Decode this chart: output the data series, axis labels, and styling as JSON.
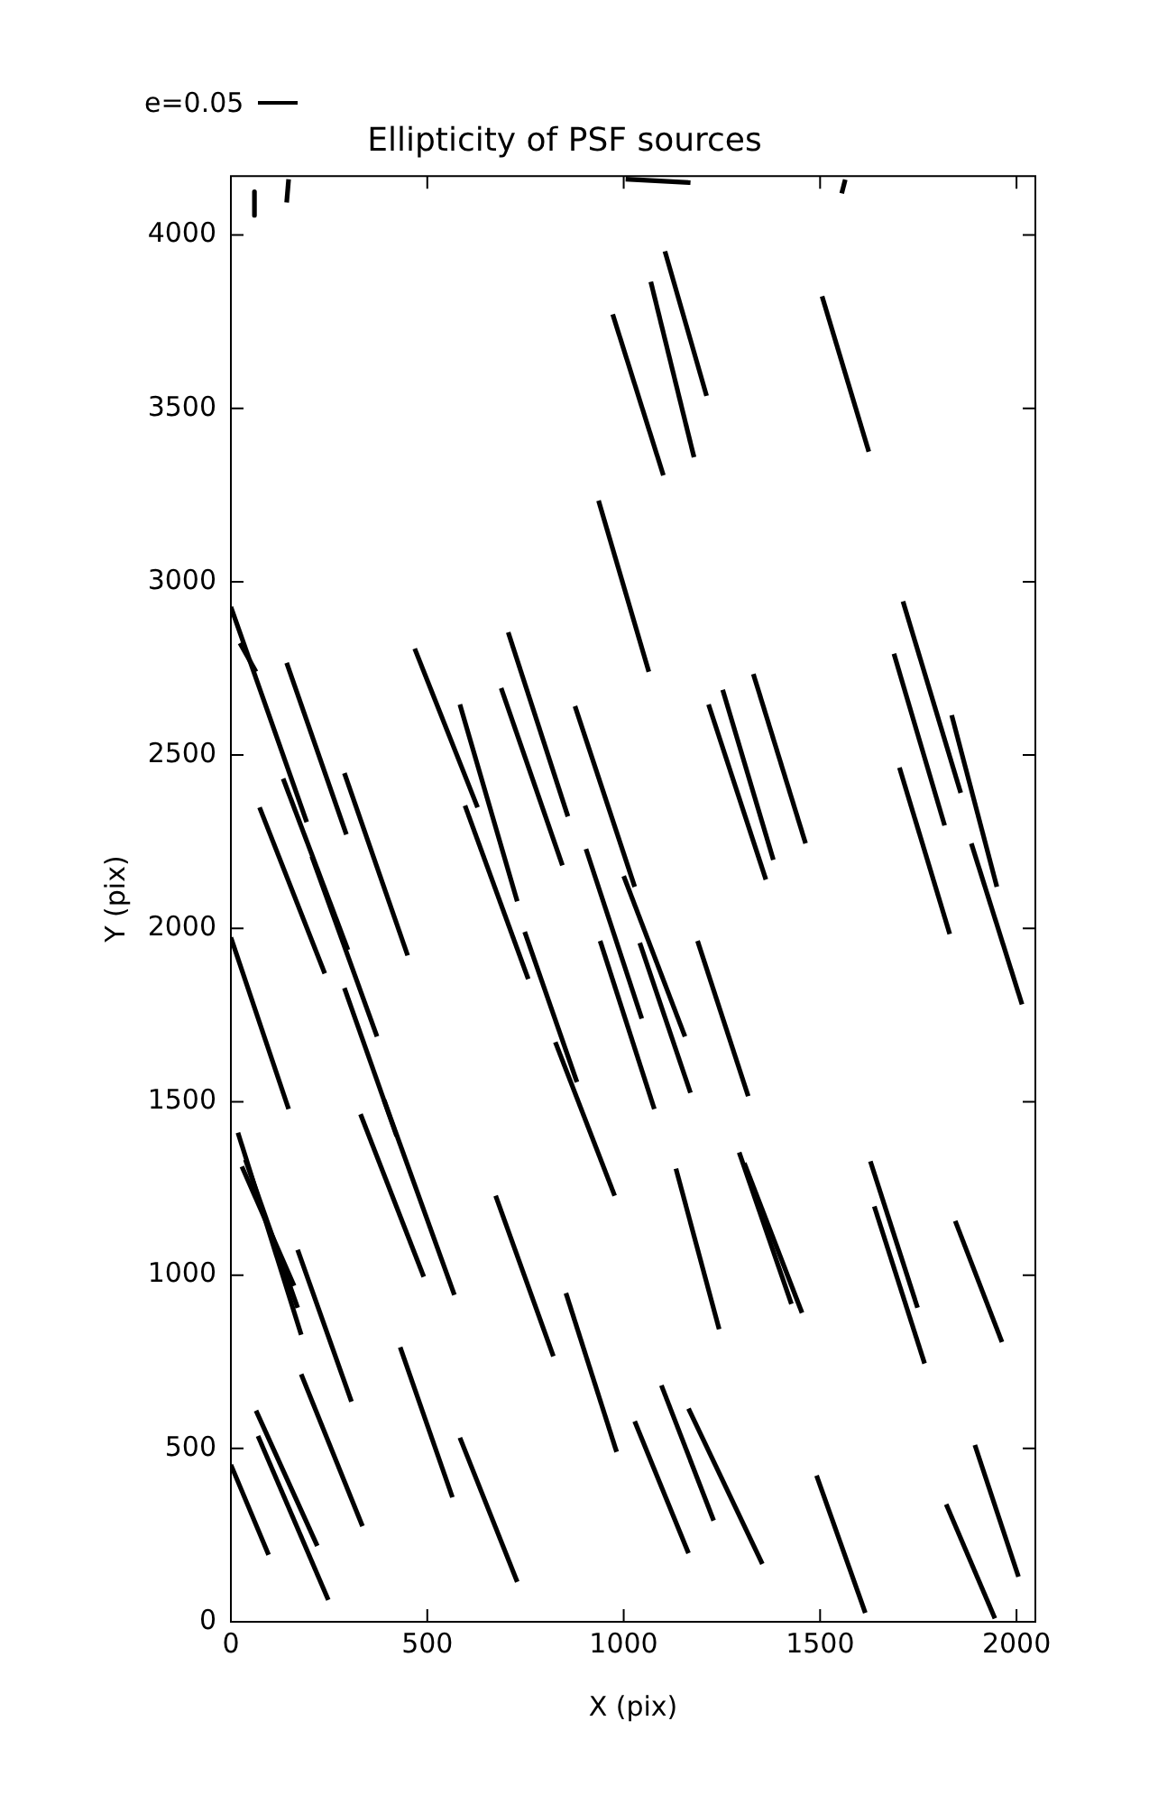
{
  "chart_data": {
    "type": "line",
    "title": "Ellipticity of PSF sources",
    "xlabel": "X (pix)",
    "ylabel": "Y (pix)",
    "xlim": [
      0,
      2048
    ],
    "ylim": [
      0,
      4170
    ],
    "xticks": [
      0,
      500,
      1000,
      1500,
      2000
    ],
    "yticks": [
      0,
      500,
      1000,
      1500,
      2000,
      2500,
      3000,
      3500,
      4000
    ],
    "grid": false,
    "legend": "top left",
    "marker": "none",
    "line_style": "solid",
    "series": [
      {
        "name": "e=0.05",
        "color": "#000000",
        "x": [
          60,
          60
        ],
        "values": [
          4125,
          4057
        ]
      },
      {
        "color": "#000000",
        "x": [
          147,
          142
        ],
        "values": [
          4161,
          4094
        ]
      },
      {
        "color": "#000000",
        "x": [
          1005,
          1170
        ],
        "values": [
          4161,
          4151
        ]
      },
      {
        "color": "#000000",
        "x": [
          1564,
          1555
        ],
        "values": [
          4160,
          4120
        ]
      },
      {
        "color": "#000000",
        "x": [
          972,
          1101
        ],
        "values": [
          3771,
          3307
        ]
      },
      {
        "color": "#000000",
        "x": [
          1069,
          1179
        ],
        "values": [
          3865,
          3359
        ]
      },
      {
        "color": "#000000",
        "x": [
          1105,
          1211
        ],
        "values": [
          3953,
          3536
        ]
      },
      {
        "color": "#000000",
        "x": [
          1505,
          1624
        ],
        "values": [
          3823,
          3375
        ]
      },
      {
        "color": "#000000",
        "x": [
          936,
          1064
        ],
        "values": [
          3234,
          2740
        ]
      },
      {
        "color": "#000000",
        "x": [
          0,
          193
        ],
        "values": [
          2927,
          2307
        ]
      },
      {
        "color": "#000000",
        "x": [
          23,
          64
        ],
        "values": [
          2823,
          2740
        ]
      },
      {
        "color": "#000000",
        "x": [
          142,
          294
        ],
        "values": [
          2766,
          2271
        ]
      },
      {
        "color": "#000000",
        "x": [
          133,
          298
        ],
        "values": [
          2432,
          1938
        ]
      },
      {
        "color": "#000000",
        "x": [
          206,
          372
        ],
        "values": [
          2208,
          1688
        ]
      },
      {
        "color": "#000000",
        "x": [
          73,
          239
        ],
        "values": [
          2349,
          1870
        ]
      },
      {
        "color": "#000000",
        "x": [
          289,
          450
        ],
        "values": [
          2448,
          1922
        ]
      },
      {
        "color": "#000000",
        "x": [
          0,
          147
        ],
        "values": [
          1974,
          1479
        ]
      },
      {
        "color": "#000000",
        "x": [
          289,
          422
        ],
        "values": [
          1828,
          1401
        ]
      },
      {
        "color": "#000000",
        "x": [
          390,
          569
        ],
        "values": [
          1505,
          943
        ]
      },
      {
        "color": "#000000",
        "x": [
          468,
          628
        ],
        "values": [
          2807,
          2349
        ]
      },
      {
        "color": "#000000",
        "x": [
          596,
          757
        ],
        "values": [
          2354,
          1854
        ]
      },
      {
        "color": "#000000",
        "x": [
          583,
          729
        ],
        "values": [
          2646,
          2078
        ]
      },
      {
        "color": "#000000",
        "x": [
          688,
          844
        ],
        "values": [
          2693,
          2182
        ]
      },
      {
        "color": "#000000",
        "x": [
          706,
          858
        ],
        "values": [
          2854,
          2323
        ]
      },
      {
        "color": "#000000",
        "x": [
          876,
          1028
        ],
        "values": [
          2641,
          2120
        ]
      },
      {
        "color": "#000000",
        "x": [
          904,
          1046
        ],
        "values": [
          2229,
          1740
        ]
      },
      {
        "color": "#000000",
        "x": [
          1000,
          1156
        ],
        "values": [
          2151,
          1688
        ]
      },
      {
        "color": "#000000",
        "x": [
          940,
          1078
        ],
        "values": [
          1964,
          1479
        ]
      },
      {
        "color": "#000000",
        "x": [
          1041,
          1170
        ],
        "values": [
          1958,
          1526
        ]
      },
      {
        "color": "#000000",
        "x": [
          1188,
          1317
        ],
        "values": [
          1964,
          1516
        ]
      },
      {
        "color": "#000000",
        "x": [
          748,
          881
        ],
        "values": [
          1990,
          1557
        ]
      },
      {
        "color": "#000000",
        "x": [
          826,
          977
        ],
        "values": [
          1672,
          1229
        ]
      },
      {
        "color": "#000000",
        "x": [
          1216,
          1362
        ],
        "values": [
          2646,
          2141
        ]
      },
      {
        "color": "#000000",
        "x": [
          1252,
          1381
        ],
        "values": [
          2688,
          2198
        ]
      },
      {
        "color": "#000000",
        "x": [
          1330,
          1463
        ],
        "values": [
          2734,
          2245
        ]
      },
      {
        "color": "#000000",
        "x": [
          1711,
          1858
        ],
        "values": [
          2943,
          2391
        ]
      },
      {
        "color": "#000000",
        "x": [
          1688,
          1817
        ],
        "values": [
          2792,
          2297
        ]
      },
      {
        "color": "#000000",
        "x": [
          1835,
          1950
        ],
        "values": [
          2615,
          2120
        ]
      },
      {
        "color": "#000000",
        "x": [
          1702,
          1830
        ],
        "values": [
          2464,
          1984
        ]
      },
      {
        "color": "#000000",
        "x": [
          1885,
          2014
        ],
        "values": [
          2245,
          1781
        ]
      },
      {
        "color": "#000000",
        "x": [
          18,
          179
        ],
        "values": [
          1411,
          828
        ]
      },
      {
        "color": "#000000",
        "x": [
          28,
          161
        ],
        "values": [
          1313,
          969
        ]
      },
      {
        "color": "#000000",
        "x": [
          37,
          170
        ],
        "values": [
          1333,
          906
        ]
      },
      {
        "color": "#000000",
        "x": [
          170,
          307
        ],
        "values": [
          1073,
          635
        ]
      },
      {
        "color": "#000000",
        "x": [
          330,
          491
        ],
        "values": [
          1464,
          995
        ]
      },
      {
        "color": "#000000",
        "x": [
          674,
          821
        ],
        "values": [
          1229,
          766
        ]
      },
      {
        "color": "#000000",
        "x": [
          853,
          982
        ],
        "values": [
          948,
          490
        ]
      },
      {
        "color": "#000000",
        "x": [
          1133,
          1243
        ],
        "values": [
          1307,
          844
        ]
      },
      {
        "color": "#000000",
        "x": [
          1294,
          1427
        ],
        "values": [
          1354,
          917
        ]
      },
      {
        "color": "#000000",
        "x": [
          1307,
          1454
        ],
        "values": [
          1323,
          891
        ]
      },
      {
        "color": "#000000",
        "x": [
          1628,
          1748
        ],
        "values": [
          1328,
          906
        ]
      },
      {
        "color": "#000000",
        "x": [
          1638,
          1766
        ],
        "values": [
          1198,
          745
        ]
      },
      {
        "color": "#000000",
        "x": [
          1844,
          1963
        ],
        "values": [
          1156,
          807
        ]
      },
      {
        "color": "#000000",
        "x": [
          179,
          335
        ],
        "values": [
          714,
          276
        ]
      },
      {
        "color": "#000000",
        "x": [
          431,
          564
        ],
        "values": [
          792,
          359
        ]
      },
      {
        "color": "#000000",
        "x": [
          583,
          729
        ],
        "values": [
          531,
          115
        ]
      },
      {
        "color": "#000000",
        "x": [
          0,
          96
        ],
        "values": [
          453,
          193
        ]
      },
      {
        "color": "#000000",
        "x": [
          64,
          220
        ],
        "values": [
          609,
          219
        ]
      },
      {
        "color": "#000000",
        "x": [
          69,
          248
        ],
        "values": [
          536,
          63
        ]
      },
      {
        "color": "#000000",
        "x": [
          1028,
          1165
        ],
        "values": [
          578,
          198
        ]
      },
      {
        "color": "#000000",
        "x": [
          1096,
          1229
        ],
        "values": [
          682,
          292
        ]
      },
      {
        "color": "#000000",
        "x": [
          1165,
          1353
        ],
        "values": [
          615,
          167
        ]
      },
      {
        "color": "#000000",
        "x": [
          1491,
          1615
        ],
        "values": [
          422,
          26
        ]
      },
      {
        "color": "#000000",
        "x": [
          1821,
          1945
        ],
        "values": [
          339,
          10
        ]
      },
      {
        "color": "#000000",
        "x": [
          1894,
          2005
        ],
        "values": [
          510,
          130
        ]
      }
    ]
  }
}
